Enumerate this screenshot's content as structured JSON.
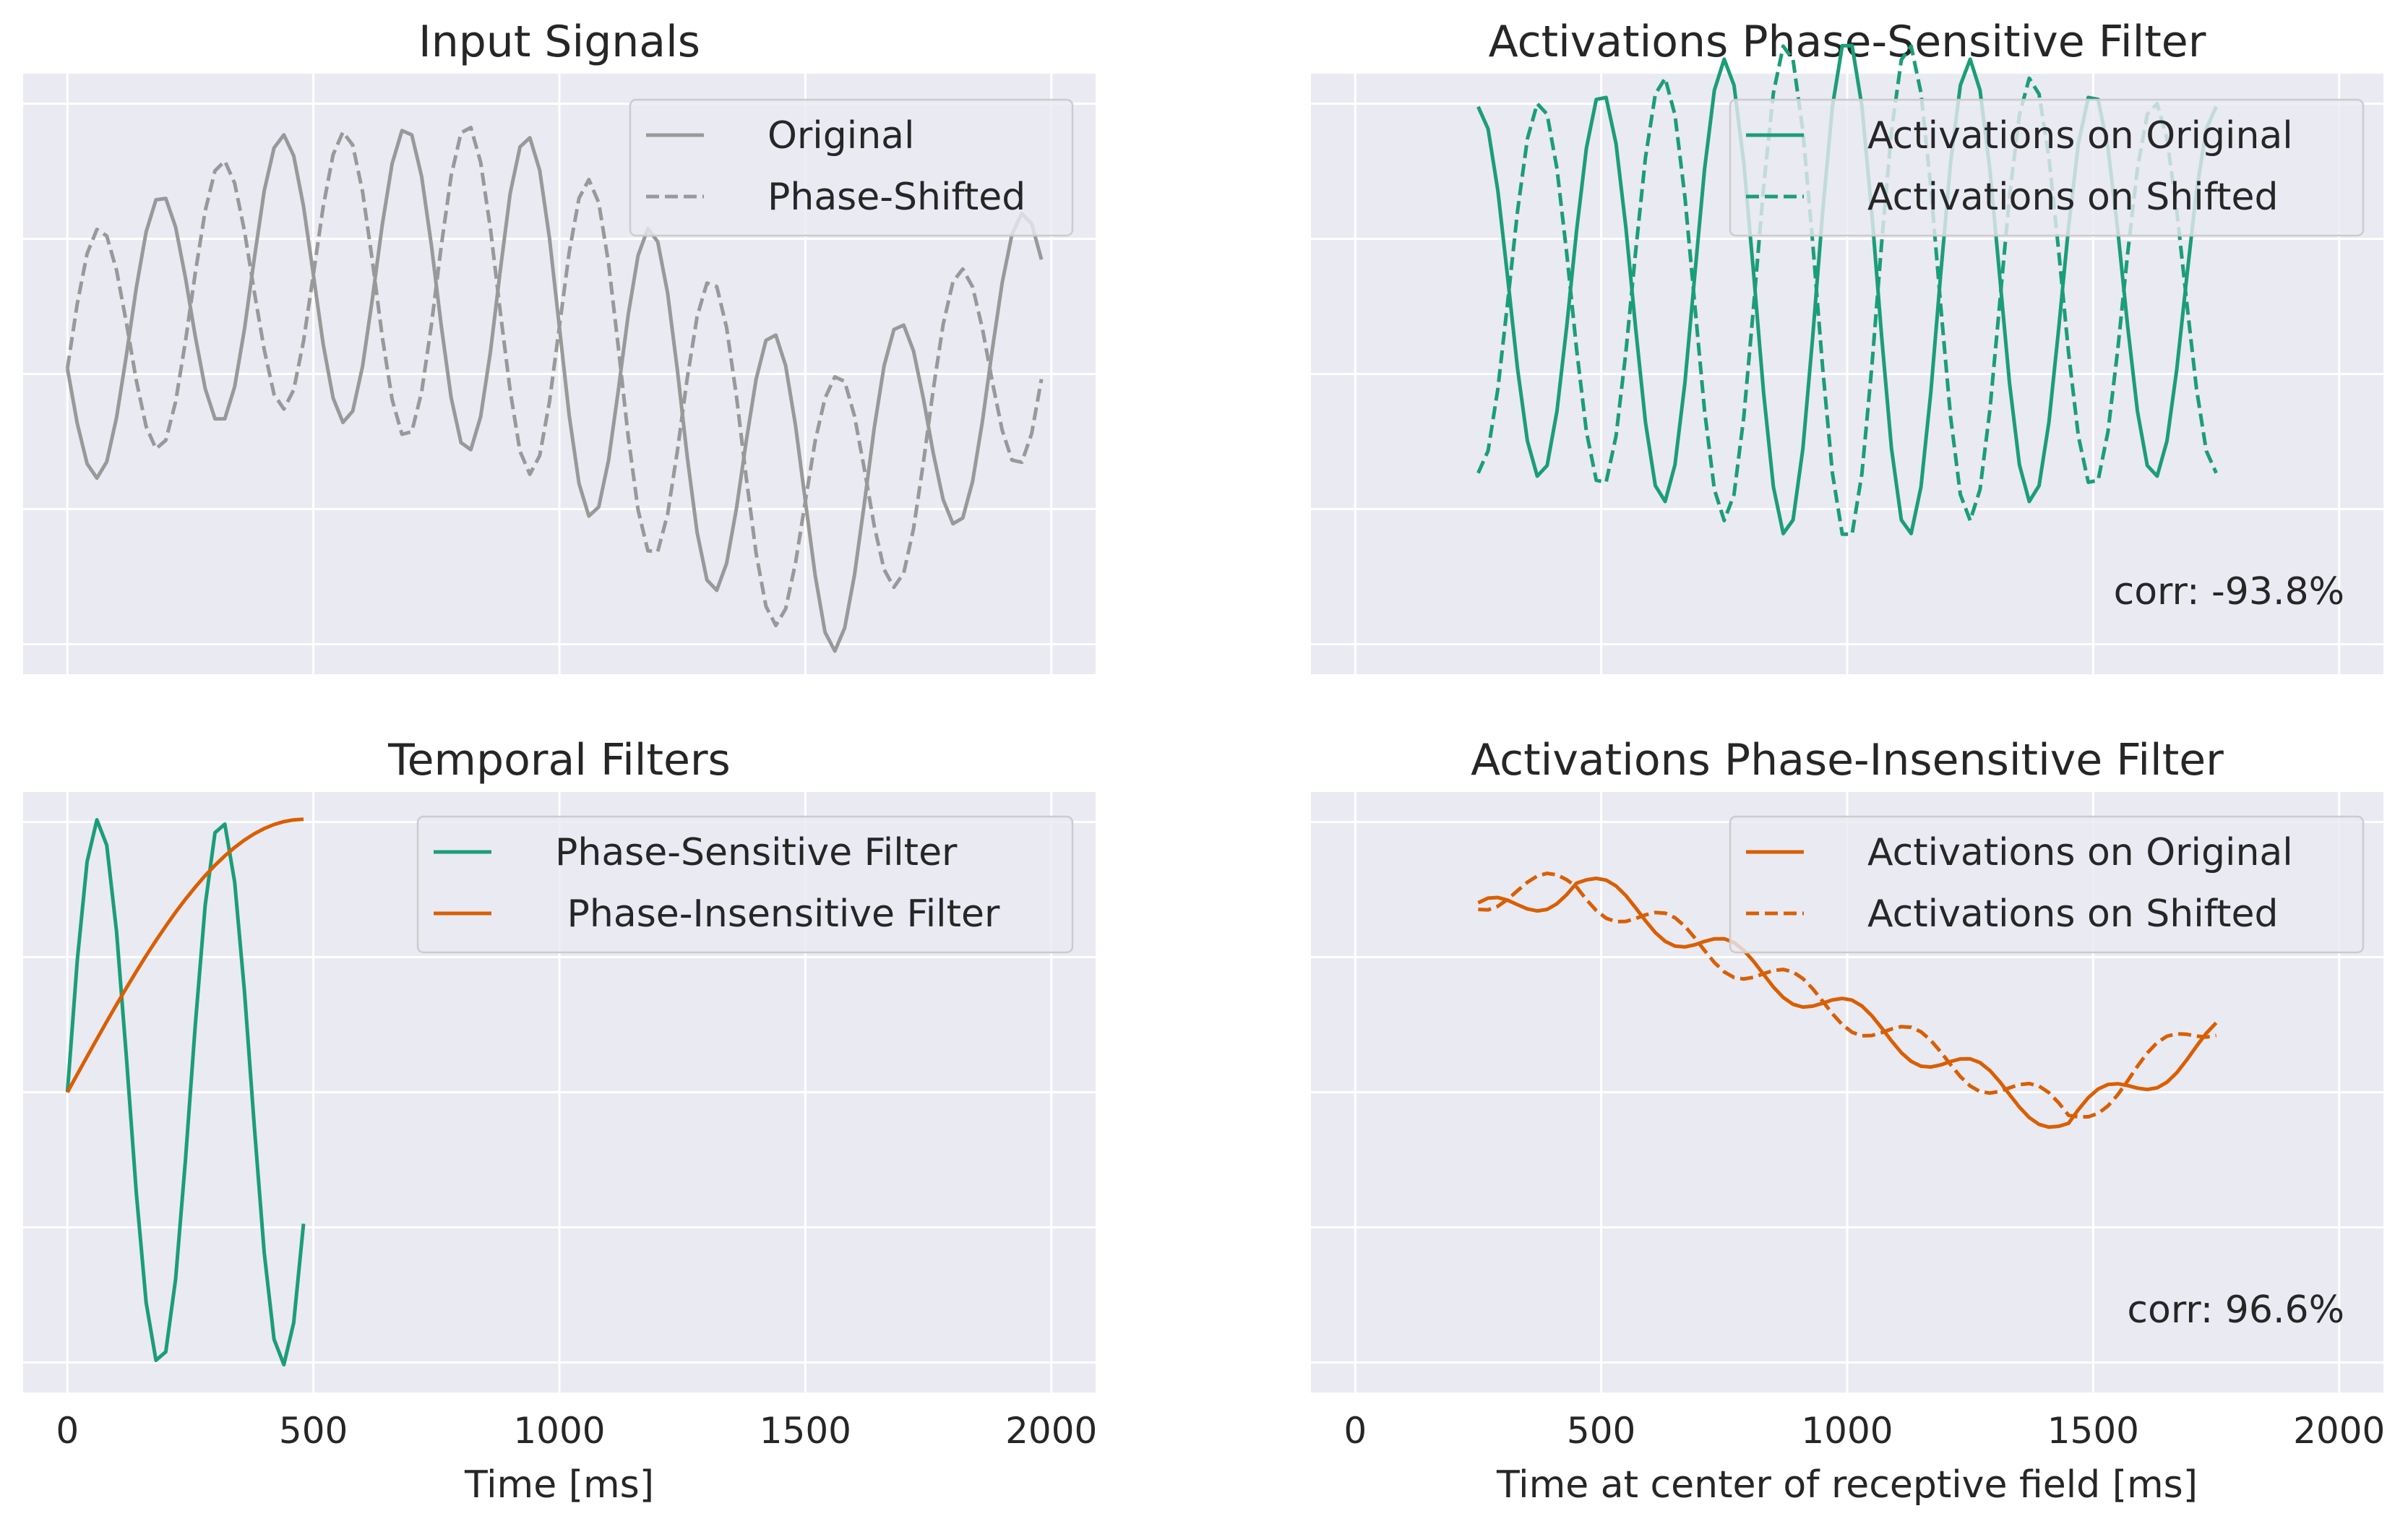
{
  "colors": {
    "gray": "#999999",
    "green": "#1b9e77",
    "orange": "#d95f02"
  },
  "chart_data": [
    {
      "id": "input",
      "type": "line",
      "title": "Input Signals",
      "xlabel": "",
      "ylabel": "",
      "xlim": [
        -90,
        2090
      ],
      "ylim": [
        -1.1,
        1.1
      ],
      "xticks": [],
      "yticks_count": 5,
      "legend": "top-right",
      "annotation": "",
      "series": [
        {
          "name": "Original",
          "color": "#999999",
          "dash": "solid",
          "dx": 20,
          "model": "input_original",
          "description": "sinusoid ~4 Hz, amplitude about 1, offset drifting downward then up"
        },
        {
          "name": "Phase-Shifted",
          "color": "#999999",
          "dash": "dashed",
          "dx": 20,
          "model": "input_shifted"
        }
      ],
      "key_points": {
        "original_start": [
          0,
          0.0
        ],
        "original_max": [
          440,
          0.99
        ],
        "original_min": [
          1560,
          -0.99
        ],
        "shifted_max": [
          560,
          0.99
        ],
        "end": [
          1980,
          0.0
        ]
      }
    },
    {
      "id": "psf",
      "type": "line",
      "title": "Activations Phase-Sensitive Filter",
      "xlabel": "",
      "ylabel": "",
      "xlim": [
        -90,
        2090
      ],
      "ylim": [
        -1.0,
        1.0
      ],
      "xticks": [],
      "yticks_count": 5,
      "legend": "top-right",
      "annotation": "corr: -93.8%",
      "series": [
        {
          "name": "Activations on Original",
          "color": "#1b9e77",
          "dash": "solid",
          "x_range": [
            250,
            1750
          ],
          "dx": 20,
          "model": "psf_original"
        },
        {
          "name": "Activations on Shifted",
          "color": "#1b9e77",
          "dash": "dashed",
          "x_range": [
            250,
            1750
          ],
          "dx": 20,
          "model": "psf_shifted"
        }
      ]
    },
    {
      "id": "filters",
      "type": "line",
      "title": "Temporal Filters",
      "xlabel": "Time [ms]",
      "ylabel": "",
      "xlim": [
        -90,
        2090
      ],
      "ylim": [
        -1.1,
        1.1
      ],
      "xticks": [
        0,
        500,
        1000,
        1500,
        2000
      ],
      "yticks_count": 5,
      "legend": "top-right",
      "annotation": "",
      "series": [
        {
          "name": "Phase-Sensitive Filter",
          "color": "#1b9e77",
          "dash": "solid",
          "x_range": [
            0,
            480
          ],
          "dx": 20,
          "model": "filter_sensitive"
        },
        {
          "name": " Phase-Insensitive Filter",
          "color": "#d95f02",
          "dash": "solid",
          "x_range": [
            0,
            480
          ],
          "dx": 20,
          "model": "filter_insensitive"
        }
      ]
    },
    {
      "id": "pif",
      "type": "line",
      "title": "Activations Phase-Insensitive Filter",
      "xlabel": "Time at center of receptive field [ms]",
      "ylabel": "",
      "xlim": [
        -90,
        2090
      ],
      "ylim": [
        -1.0,
        1.0
      ],
      "xticks": [
        0,
        500,
        1000,
        1500,
        2000
      ],
      "yticks_count": 5,
      "legend": "top-right",
      "annotation": "corr: 96.6%",
      "series": [
        {
          "name": "Activations on Original",
          "color": "#d95f02",
          "dash": "solid",
          "x_range": [
            250,
            1750
          ],
          "dx": 20,
          "model": "pif_original"
        },
        {
          "name": "Activations on Shifted",
          "color": "#d95f02",
          "dash": "dashed",
          "x_range": [
            250,
            1750
          ],
          "dx": 20,
          "model": "pif_shifted"
        }
      ]
    }
  ]
}
